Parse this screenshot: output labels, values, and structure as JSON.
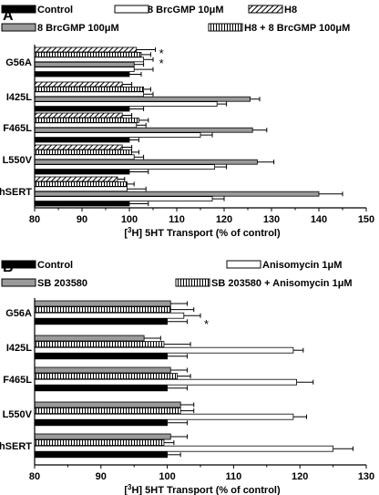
{
  "chart_data": [
    {
      "type": "bar",
      "orientation": "horizontal",
      "panel_label": "A",
      "categories": [
        "G56A",
        "I425L",
        "F465L",
        "L550V",
        "hSERT"
      ],
      "series": [
        {
          "name": "H8",
          "pattern": "diagonal",
          "values": [
            101.5,
            98.5,
            98.5,
            98.5,
            97.5
          ],
          "errors": [
            4,
            2,
            2,
            2,
            1.5
          ]
        },
        {
          "name": "H8 + 8 BrcGMP 100μM",
          "pattern": "vertical",
          "values": [
            102.5,
            103,
            102,
            100.5,
            99.5
          ],
          "errors": [
            2,
            1.5,
            2,
            1.5,
            1.5
          ]
        },
        {
          "name": "8 BrcGMP 10μM",
          "pattern": "white",
          "values": [
            103,
            103,
            101.5,
            101,
            99.5
          ],
          "errors": [
            2,
            2,
            2,
            2,
            4
          ]
        },
        {
          "name": "8 BrcGMP 100μM",
          "pattern": "gray",
          "values": [
            101,
            125.5,
            126,
            127,
            140
          ],
          "errors": [
            2,
            2,
            3,
            3.5,
            5
          ]
        },
        {
          "name": "",
          "pattern": "white",
          "values": [
            101,
            118.5,
            115,
            118,
            117.5
          ],
          "errors": [
            4,
            2,
            2.5,
            2.5,
            2.5
          ]
        },
        {
          "name": "Control",
          "pattern": "black",
          "values": [
            100,
            100,
            100,
            100,
            100
          ],
          "errors": [
            2.5,
            3,
            2,
            4,
            4
          ]
        }
      ],
      "xlabel_pre": "[",
      "xlabel_sup": "3",
      "xlabel_post": "H] 5HT Transport (% of control)",
      "xlim": [
        80,
        150
      ],
      "xticks": [
        "80",
        "90",
        "100",
        "110",
        "120",
        "130",
        "140",
        "150"
      ],
      "annotations": [
        {
          "category": "G56A",
          "text": "*"
        },
        {
          "category": "G56A",
          "text": "*"
        }
      ],
      "legend": [
        {
          "label": "Control",
          "pattern": "black"
        },
        {
          "label": "8 BrcGMP 10μM",
          "pattern": "white"
        },
        {
          "label": "H8",
          "pattern": "diagonal"
        },
        {
          "label": "8 BrcGMP 100μM",
          "pattern": "gray"
        },
        {
          "label": "H8 + 8 BrcGMP 100μM",
          "pattern": "vertical"
        }
      ],
      "grid": false
    },
    {
      "type": "bar",
      "orientation": "horizontal",
      "panel_label": "B",
      "categories": [
        "G56A",
        "I425L",
        "F465L",
        "L550V",
        "hSERT"
      ],
      "series": [
        {
          "name": "SB 203580",
          "pattern": "gray",
          "values": [
            100.5,
            96.5,
            100.5,
            102,
            100.5
          ],
          "errors": [
            2.5,
            2.5,
            2.5,
            2,
            2.5
          ]
        },
        {
          "name": "SB 203580 + Anisomycin 1μM",
          "pattern": "vertical",
          "values": [
            100.5,
            99.5,
            101.5,
            102,
            99.5
          ],
          "errors": [
            3.5,
            4,
            2,
            2,
            1.5
          ]
        },
        {
          "name": "Anisomycin 1μM",
          "pattern": "white",
          "values": [
            102.5,
            119,
            119.5,
            119,
            125
          ],
          "errors": [
            2.5,
            1.5,
            2.5,
            2,
            3
          ]
        },
        {
          "name": "Control",
          "pattern": "black",
          "values": [
            100,
            100,
            100,
            100,
            100
          ],
          "errors": [
            3,
            3,
            3,
            3,
            2
          ]
        }
      ],
      "xlabel_pre": "[",
      "xlabel_sup": "3",
      "xlabel_post": "H] 5HT Transport (% of control)",
      "xlim": [
        80,
        130
      ],
      "xticks": [
        "80",
        "90",
        "100",
        "110",
        "120",
        "130"
      ],
      "annotations": [
        {
          "category": "G56A",
          "text": "*"
        }
      ],
      "legend": [
        {
          "label": "Control",
          "pattern": "black"
        },
        {
          "label": "Anisomycin 1μM",
          "pattern": "white"
        },
        {
          "label": "SB 203580",
          "pattern": "gray"
        },
        {
          "label": "SB 203580 + Anisomycin 1μM",
          "pattern": "vertical"
        }
      ],
      "grid": false
    }
  ]
}
